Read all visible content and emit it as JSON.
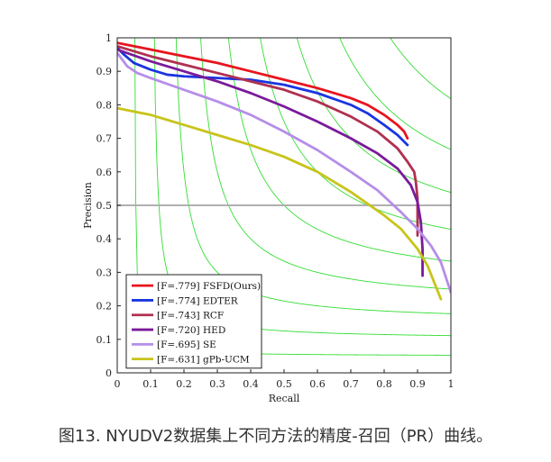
{
  "caption": "图13. NYUDV2数据集上不同方法的精度-召回（PR）曲线。",
  "chart_data": {
    "type": "line",
    "xlabel": "Recall",
    "ylabel": "Precision",
    "xlim": [
      0,
      1
    ],
    "ylim": [
      0,
      1
    ],
    "x_ticks": [
      "0",
      "0.1",
      "0.2",
      "0.3",
      "0.4",
      "0.5",
      "0.6",
      "0.7",
      "0.8",
      "0.9",
      "1"
    ],
    "y_ticks": [
      "0",
      "0.1",
      "0.2",
      "0.3",
      "0.4",
      "0.5",
      "0.6",
      "0.7",
      "0.8",
      "0.9",
      "1"
    ],
    "grid": false,
    "reference_line": {
      "y": 0.5,
      "color": "#b0b0b0"
    },
    "iso_f_color": "#33dd33",
    "iso_f_values": [
      0.1,
      0.2,
      0.3,
      0.4,
      0.5,
      0.6,
      0.7,
      0.8,
      0.9
    ],
    "legend_position": "bottom-left",
    "series": [
      {
        "name": "[F=.779] FSFD(Ours)",
        "color": "#e8141e",
        "x": [
          0.0,
          0.1,
          0.2,
          0.3,
          0.4,
          0.5,
          0.6,
          0.7,
          0.75,
          0.8,
          0.84,
          0.86,
          0.87
        ],
        "y": [
          0.985,
          0.965,
          0.945,
          0.925,
          0.9,
          0.875,
          0.85,
          0.82,
          0.8,
          0.77,
          0.74,
          0.72,
          0.7
        ]
      },
      {
        "name": "[F=.774] EDTER",
        "color": "#1a35e0",
        "x": [
          0.0,
          0.02,
          0.05,
          0.1,
          0.15,
          0.2,
          0.3,
          0.4,
          0.5,
          0.6,
          0.7,
          0.75,
          0.8,
          0.84,
          0.86,
          0.87
        ],
        "y": [
          0.97,
          0.95,
          0.925,
          0.905,
          0.89,
          0.885,
          0.88,
          0.875,
          0.86,
          0.835,
          0.8,
          0.775,
          0.74,
          0.71,
          0.69,
          0.68
        ]
      },
      {
        "name": "[F=.743] RCF",
        "color": "#b03050",
        "x": [
          0.0,
          0.1,
          0.2,
          0.3,
          0.4,
          0.5,
          0.6,
          0.7,
          0.78,
          0.84,
          0.87,
          0.89,
          0.895,
          0.9,
          0.9,
          0.9
        ],
        "y": [
          0.975,
          0.945,
          0.92,
          0.895,
          0.87,
          0.845,
          0.81,
          0.765,
          0.72,
          0.67,
          0.63,
          0.6,
          0.57,
          0.52,
          0.46,
          0.41
        ]
      },
      {
        "name": "[F=.720] HED",
        "color": "#7a1a9a",
        "x": [
          0.0,
          0.1,
          0.2,
          0.3,
          0.4,
          0.5,
          0.6,
          0.7,
          0.78,
          0.84,
          0.88,
          0.9,
          0.91,
          0.915,
          0.915
        ],
        "y": [
          0.965,
          0.93,
          0.9,
          0.87,
          0.835,
          0.795,
          0.75,
          0.7,
          0.655,
          0.61,
          0.56,
          0.51,
          0.45,
          0.37,
          0.29
        ]
      },
      {
        "name": "[F=.695] SE",
        "color": "#b58ee8",
        "x": [
          0.0,
          0.03,
          0.06,
          0.1,
          0.2,
          0.3,
          0.4,
          0.5,
          0.6,
          0.7,
          0.78,
          0.85,
          0.9,
          0.94,
          0.97,
          0.99,
          1.0
        ],
        "y": [
          0.955,
          0.915,
          0.895,
          0.88,
          0.845,
          0.81,
          0.77,
          0.72,
          0.665,
          0.6,
          0.545,
          0.48,
          0.43,
          0.38,
          0.33,
          0.27,
          0.24
        ]
      },
      {
        "name": "[F=.631] gPb-UCM",
        "color": "#c8c41a",
        "x": [
          0.0,
          0.05,
          0.1,
          0.15,
          0.2,
          0.3,
          0.4,
          0.5,
          0.6,
          0.7,
          0.8,
          0.85,
          0.9,
          0.93,
          0.95,
          0.97
        ],
        "y": [
          0.79,
          0.78,
          0.77,
          0.755,
          0.74,
          0.71,
          0.68,
          0.645,
          0.6,
          0.54,
          0.47,
          0.43,
          0.37,
          0.32,
          0.27,
          0.22
        ]
      }
    ]
  }
}
